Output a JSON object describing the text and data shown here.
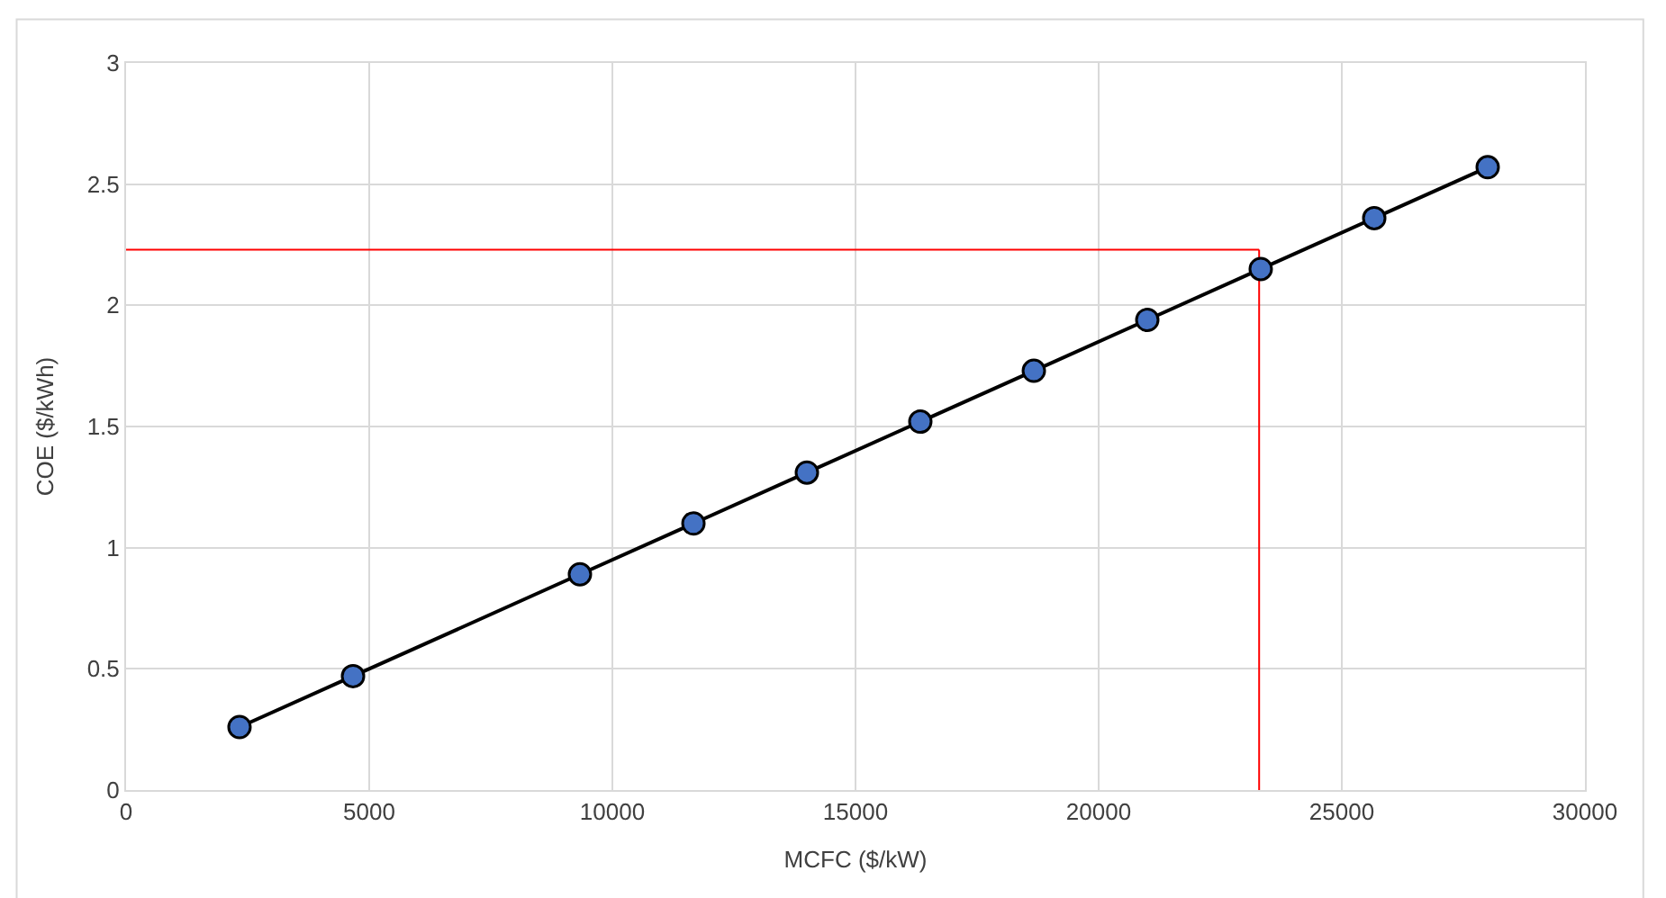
{
  "chart_data": {
    "type": "line",
    "xlabel": "MCFC ($/kW)",
    "ylabel": "COE ($/kWh)",
    "x": [
      2333,
      4667,
      9333,
      11667,
      14000,
      16333,
      18667,
      21000,
      23333,
      25667,
      28000
    ],
    "series": [
      {
        "color": "#4472c4",
        "values": [
          0.26,
          0.47,
          0.89,
          1.1,
          1.31,
          1.52,
          1.73,
          1.94,
          2.15,
          2.36,
          2.57
        ]
      }
    ],
    "xlim": [
      0,
      30000
    ],
    "xticks": [
      0,
      5000,
      10000,
      15000,
      20000,
      25000,
      30000
    ],
    "ylim": [
      0,
      3
    ],
    "yticks": [
      0,
      0.5,
      1,
      1.5,
      2,
      2.5,
      3
    ],
    "ref_lines": [
      {
        "axis": "y",
        "value": 2.23,
        "color": "#ff0000"
      },
      {
        "axis": "x",
        "value": 23300,
        "color": "#ff0000"
      }
    ],
    "grid": true,
    "marker": "circle",
    "line_style": "solid"
  }
}
